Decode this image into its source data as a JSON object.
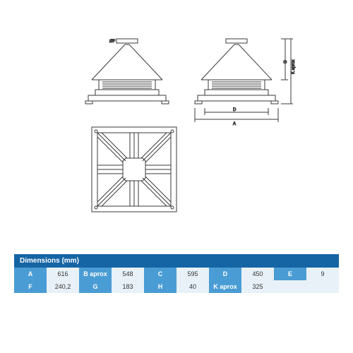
{
  "diagram": {
    "stroke": "#3a3a3a",
    "stroke_width": 1
  },
  "table": {
    "title": "Dimensions (mm)",
    "header_bg": "#1565a5",
    "label_bg": "#4a9cd4",
    "value_bg": "#e8f1f7",
    "label_color": "#ffffff",
    "value_color": "#333333",
    "font_size": 9,
    "rows": [
      [
        {
          "label": "A",
          "value": "616"
        },
        {
          "label": "B aprox",
          "value": "548"
        },
        {
          "label": "C",
          "value": "595"
        },
        {
          "label": "D",
          "value": "450"
        },
        {
          "label": "E",
          "value": "9"
        }
      ],
      [
        {
          "label": "F",
          "value": "240,2"
        },
        {
          "label": "G",
          "value": "183"
        },
        {
          "label": "H",
          "value": "40"
        },
        {
          "label": "K aprox",
          "value": "325"
        },
        {
          "label": "",
          "value": ""
        }
      ]
    ]
  }
}
